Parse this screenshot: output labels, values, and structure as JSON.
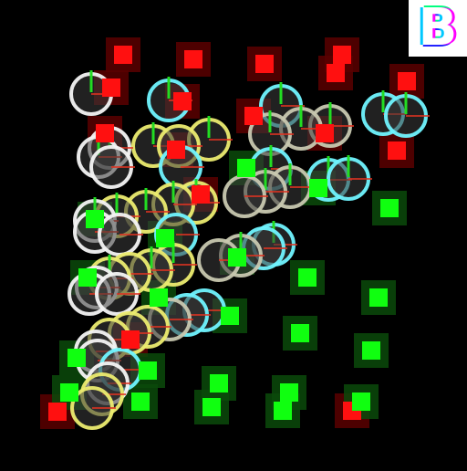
{
  "logo": {
    "letter": "B"
  },
  "colors": {
    "background": "#000000",
    "enemy": "#ff1010",
    "enemy_glow": "#5a0000",
    "ally": "#10ff10",
    "ally_glow": "#0a4a0a",
    "ring_white": "#f4f4f4",
    "ring_yellow": "#ecec70",
    "ring_cyan": "#70f4ff",
    "ring_gray": "#c8c8b0",
    "tick_green": "#22dd22",
    "tick_red": "#dd3322"
  },
  "icons": {
    "enemy": "red-square-unit-icon",
    "ally": "green-square-unit-icon",
    "ring": "circle-unit-icon",
    "logo": "rainbow-b-logo-icon"
  }
}
